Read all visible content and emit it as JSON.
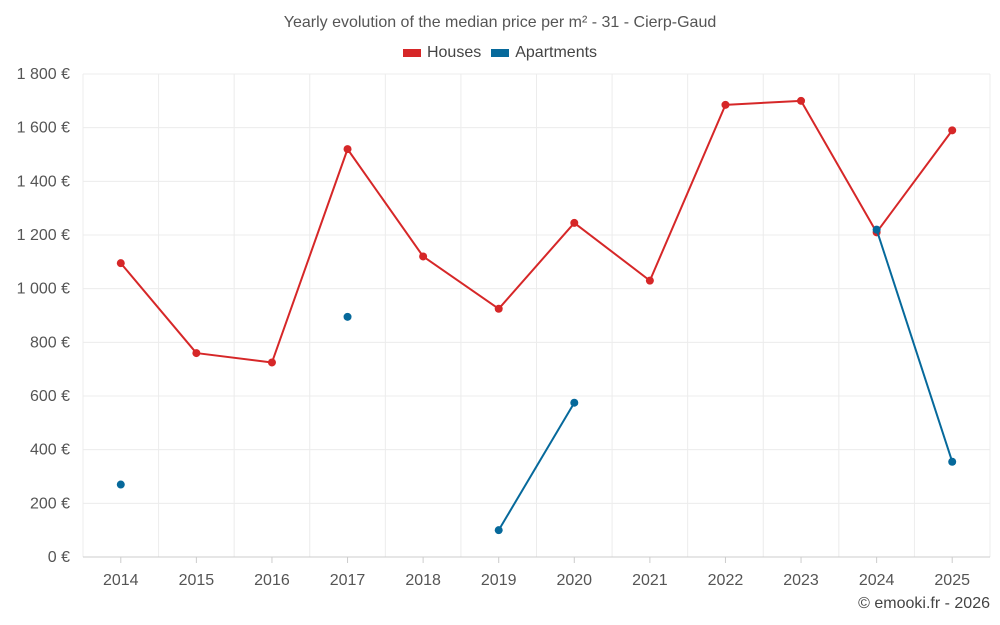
{
  "chart_data": {
    "type": "line",
    "title": "Yearly evolution of the median price per m² - 31 - Cierp-Gaud",
    "xlabel": "",
    "ylabel": "",
    "categories": [
      "2014",
      "2015",
      "2016",
      "2017",
      "2018",
      "2019",
      "2020",
      "2021",
      "2022",
      "2023",
      "2024",
      "2025"
    ],
    "ylim": [
      0,
      1800
    ],
    "yticks": [
      0,
      200,
      400,
      600,
      800,
      1000,
      1200,
      1400,
      1600,
      1800
    ],
    "ytick_labels": [
      "0 €",
      "200 €",
      "400 €",
      "600 €",
      "800 €",
      "1 000 €",
      "1 200 €",
      "1 400 €",
      "1 600 €",
      "1 800 €"
    ],
    "grid": true,
    "legend_position": "top-center",
    "series": [
      {
        "name": "Houses",
        "color": "#d62728",
        "values": [
          1095,
          760,
          725,
          1520,
          1120,
          925,
          1245,
          1030,
          1685,
          1700,
          1210,
          1590
        ]
      },
      {
        "name": "Apartments",
        "color": "#06699b",
        "values": [
          270,
          null,
          null,
          895,
          null,
          100,
          575,
          null,
          null,
          null,
          1220,
          355
        ]
      }
    ]
  },
  "credit": "© emooki.fr - 2026"
}
